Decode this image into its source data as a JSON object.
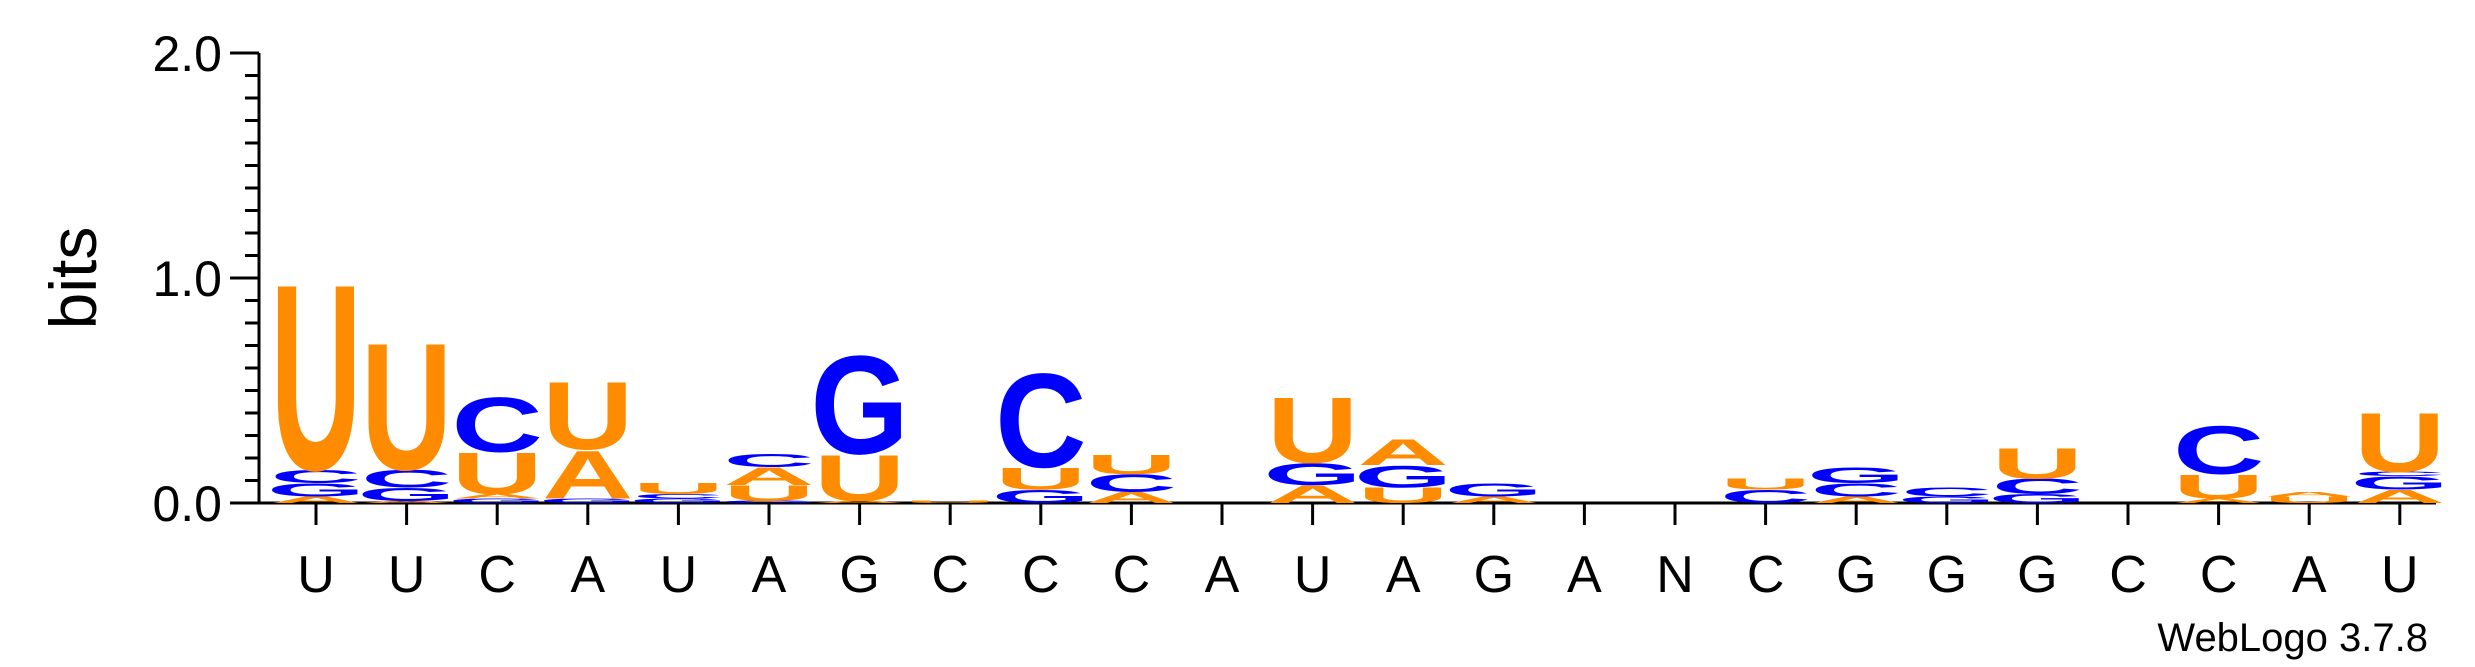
{
  "chart_data": {
    "type": "sequence-logo",
    "ylabel": "bits",
    "ylim": [
      0,
      2
    ],
    "yticks": [
      "0.0",
      "1.0",
      "2.0"
    ],
    "colors": {
      "A": "#FF8C00",
      "U": "#FF8C00",
      "C": "#0000FF",
      "G": "#0000FF"
    },
    "xtick_labels": [
      "U",
      "U",
      "C",
      "A",
      "U",
      "A",
      "G",
      "C",
      "C",
      "C",
      "A",
      "U",
      "A",
      "G",
      "A",
      "N",
      "C",
      "G",
      "G",
      "G",
      "C",
      "C",
      "A",
      "U"
    ],
    "positions": [
      [
        [
          "A",
          0.03
        ],
        [
          "G",
          0.06
        ],
        [
          "C",
          0.06
        ],
        [
          "U",
          0.85
        ]
      ],
      [
        [
          "A",
          0.01
        ],
        [
          "G",
          0.06
        ],
        [
          "C",
          0.08
        ],
        [
          "U",
          0.58
        ]
      ],
      [
        [
          "G",
          0.02
        ],
        [
          "A",
          0.02
        ],
        [
          "U",
          0.19
        ],
        [
          "C",
          0.25
        ]
      ],
      [
        [
          "G",
          0.02
        ],
        [
          "A",
          0.22
        ],
        [
          "U",
          0.31
        ]
      ],
      [
        [
          "G",
          0.02
        ],
        [
          "C",
          0.02
        ],
        [
          "U",
          0.05
        ]
      ],
      [
        [
          "G",
          0.01
        ],
        [
          "U",
          0.07
        ],
        [
          "A",
          0.08
        ],
        [
          "C",
          0.06
        ]
      ],
      [
        [
          "A",
          0.01
        ],
        [
          "U",
          0.21
        ],
        [
          "G",
          0.45
        ]
      ],
      [
        [
          "U",
          0.01
        ]
      ],
      [
        [
          "G",
          0.06
        ],
        [
          "U",
          0.1
        ],
        [
          "C",
          0.43
        ]
      ],
      [
        [
          "A",
          0.05
        ],
        [
          "C",
          0.08
        ],
        [
          "U",
          0.09
        ]
      ],
      [],
      [
        [
          "A",
          0.08
        ],
        [
          "G",
          0.1
        ],
        [
          "U",
          0.3
        ]
      ],
      [
        [
          "U",
          0.07
        ],
        [
          "G",
          0.1
        ],
        [
          "A",
          0.12
        ]
      ],
      [
        [
          "A",
          0.03
        ],
        [
          "G",
          0.06
        ]
      ],
      [],
      [],
      [
        [
          "C",
          0.06
        ],
        [
          "U",
          0.05
        ]
      ],
      [
        [
          "A",
          0.03
        ],
        [
          "C",
          0.06
        ],
        [
          "G",
          0.07
        ]
      ],
      [
        [
          "G",
          0.03
        ],
        [
          "C",
          0.04
        ]
      ],
      [
        [
          "G",
          0.04
        ],
        [
          "C",
          0.07
        ],
        [
          "U",
          0.14
        ]
      ],
      [],
      [
        [
          "A",
          0.02
        ],
        [
          "U",
          0.11
        ],
        [
          "C",
          0.22
        ]
      ],
      [
        [
          "U",
          0.03
        ],
        [
          "A",
          0.02
        ]
      ],
      [
        [
          "A",
          0.06
        ],
        [
          "G",
          0.06
        ],
        [
          "C",
          0.02
        ],
        [
          "U",
          0.27
        ]
      ]
    ],
    "credit": "WebLogo 3.7.8"
  }
}
